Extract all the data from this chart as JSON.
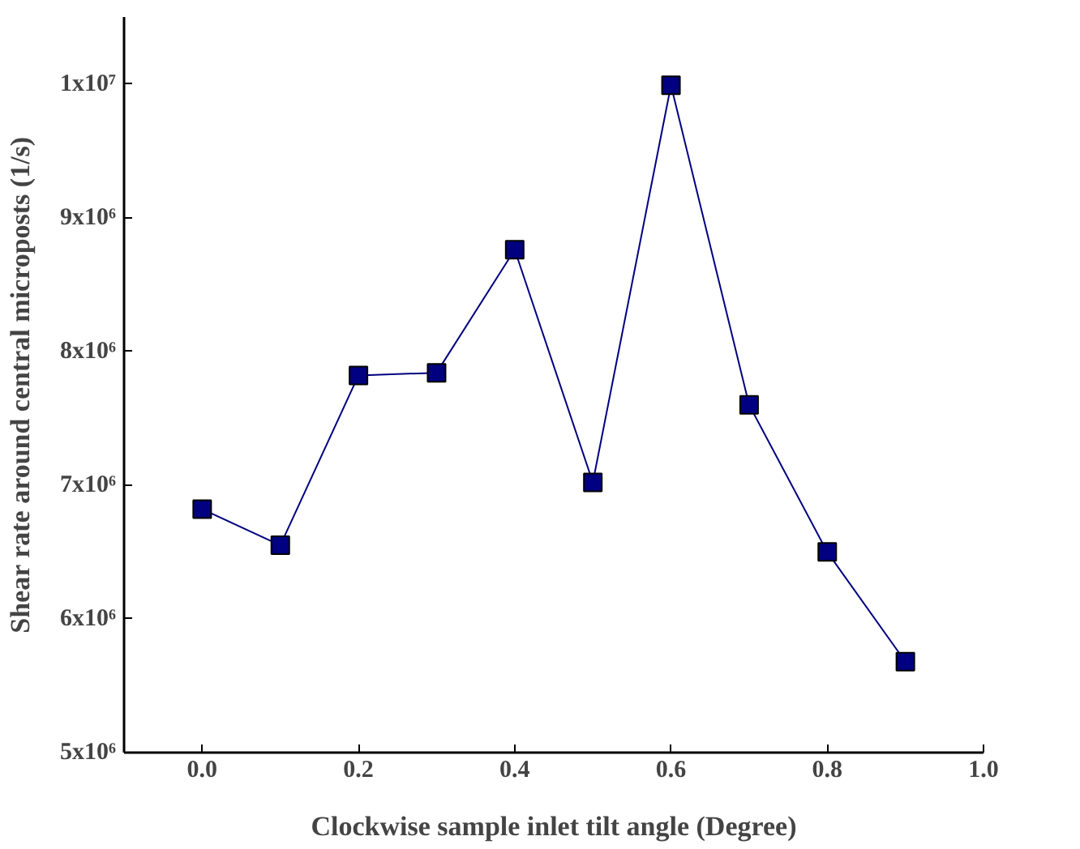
{
  "chart_data": {
    "type": "line",
    "xlabel": "Clockwise sample inlet tilt angle (Degree)",
    "ylabel": "Shear rate around central microposts (1/s)",
    "x": [
      0.0,
      0.1,
      0.2,
      0.3,
      0.4,
      0.5,
      0.6,
      0.7,
      0.8,
      0.9
    ],
    "series": [
      {
        "color": "#000080",
        "values": [
          6820000,
          6550000,
          7820000,
          7840000,
          8760000,
          7020000,
          9990000,
          7600000,
          6500000,
          5680000
        ]
      }
    ],
    "marker": "square",
    "line_style": "solid",
    "grid": false,
    "xlim": [
      -0.1,
      1.0
    ],
    "ylim": [
      5000000,
      10500000
    ],
    "xticks": [
      {
        "value": 0.0,
        "label": "0.0"
      },
      0.2,
      0.4,
      0.6,
      0.8,
      {
        "value": 1.0,
        "label": "1.0"
      }
    ],
    "yticks": [
      {
        "value": 5000000,
        "label": "5x10⁶"
      },
      {
        "value": 6000000,
        "label": "6x10⁶"
      },
      {
        "value": 7000000,
        "label": "7x10⁶"
      },
      {
        "value": 8000000,
        "label": "8x10⁶"
      },
      {
        "value": 9000000,
        "label": "9x10⁶"
      },
      {
        "value": 10000000,
        "label": "1x10⁷"
      }
    ]
  }
}
